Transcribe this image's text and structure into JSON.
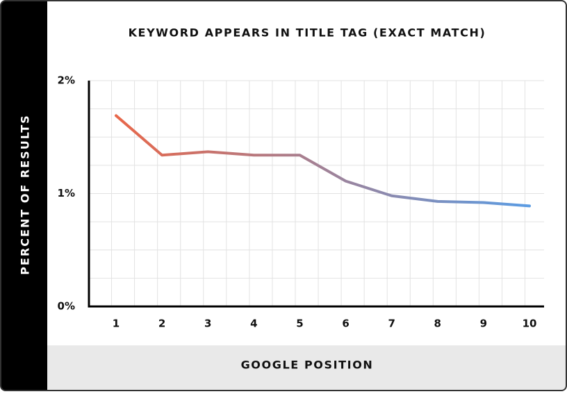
{
  "chart_data": {
    "type": "line",
    "title": "KEYWORD APPEARS IN TITLE TAG (EXACT MATCH)",
    "y_label": "PERCENT OF RESULTS",
    "x_label": "GOOGLE POSITION",
    "categories": [
      "1",
      "2",
      "3",
      "4",
      "5",
      "6",
      "7",
      "8",
      "9",
      "10"
    ],
    "series": [
      {
        "values": [
          1.69,
          1.34,
          1.37,
          1.34,
          1.34,
          1.11,
          0.98,
          0.93,
          0.92,
          0.89
        ],
        "colors": [
          "#e8674a",
          "#5b9ce3"
        ]
      }
    ],
    "ylim": [
      0,
      2
    ],
    "yticks": [
      {
        "value": 0,
        "label": "0%"
      },
      {
        "value": 1,
        "label": "1%"
      },
      {
        "value": 2,
        "label": "2%"
      }
    ],
    "grid": true
  }
}
